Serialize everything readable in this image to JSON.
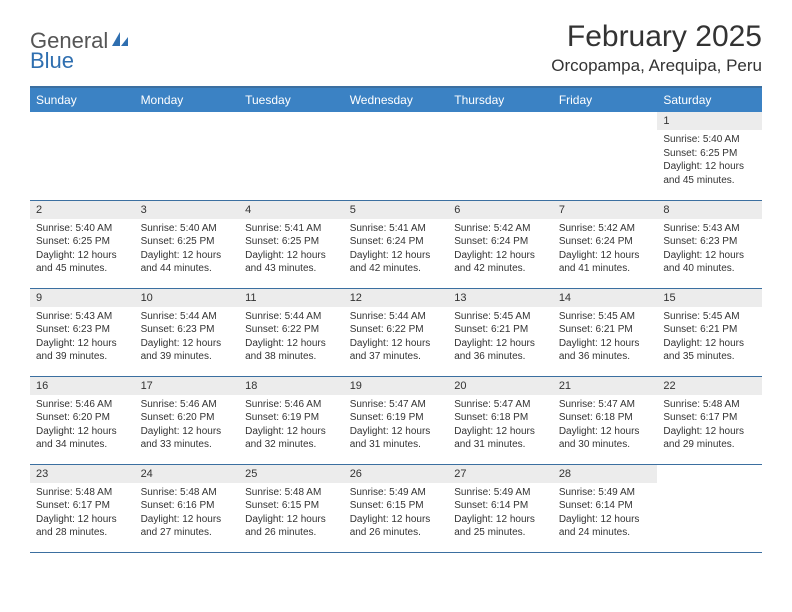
{
  "logo": {
    "text1": "General",
    "text2": "Blue",
    "color_gray": "#555555",
    "color_blue": "#2f6fb0"
  },
  "title": "February 2025",
  "location": "Orcopampa, Arequipa, Peru",
  "header_bg": "#3b82c4",
  "header_border": "#3b6fa0",
  "daynum_bg": "#ececec",
  "text_color": "#333333",
  "days_of_week": [
    "Sunday",
    "Monday",
    "Tuesday",
    "Wednesday",
    "Thursday",
    "Friday",
    "Saturday"
  ],
  "weeks": [
    [
      {
        "n": "",
        "sr": "",
        "ss": "",
        "dl": ""
      },
      {
        "n": "",
        "sr": "",
        "ss": "",
        "dl": ""
      },
      {
        "n": "",
        "sr": "",
        "ss": "",
        "dl": ""
      },
      {
        "n": "",
        "sr": "",
        "ss": "",
        "dl": ""
      },
      {
        "n": "",
        "sr": "",
        "ss": "",
        "dl": ""
      },
      {
        "n": "",
        "sr": "",
        "ss": "",
        "dl": ""
      },
      {
        "n": "1",
        "sr": "Sunrise: 5:40 AM",
        "ss": "Sunset: 6:25 PM",
        "dl": "Daylight: 12 hours and 45 minutes."
      }
    ],
    [
      {
        "n": "2",
        "sr": "Sunrise: 5:40 AM",
        "ss": "Sunset: 6:25 PM",
        "dl": "Daylight: 12 hours and 45 minutes."
      },
      {
        "n": "3",
        "sr": "Sunrise: 5:40 AM",
        "ss": "Sunset: 6:25 PM",
        "dl": "Daylight: 12 hours and 44 minutes."
      },
      {
        "n": "4",
        "sr": "Sunrise: 5:41 AM",
        "ss": "Sunset: 6:25 PM",
        "dl": "Daylight: 12 hours and 43 minutes."
      },
      {
        "n": "5",
        "sr": "Sunrise: 5:41 AM",
        "ss": "Sunset: 6:24 PM",
        "dl": "Daylight: 12 hours and 42 minutes."
      },
      {
        "n": "6",
        "sr": "Sunrise: 5:42 AM",
        "ss": "Sunset: 6:24 PM",
        "dl": "Daylight: 12 hours and 42 minutes."
      },
      {
        "n": "7",
        "sr": "Sunrise: 5:42 AM",
        "ss": "Sunset: 6:24 PM",
        "dl": "Daylight: 12 hours and 41 minutes."
      },
      {
        "n": "8",
        "sr": "Sunrise: 5:43 AM",
        "ss": "Sunset: 6:23 PM",
        "dl": "Daylight: 12 hours and 40 minutes."
      }
    ],
    [
      {
        "n": "9",
        "sr": "Sunrise: 5:43 AM",
        "ss": "Sunset: 6:23 PM",
        "dl": "Daylight: 12 hours and 39 minutes."
      },
      {
        "n": "10",
        "sr": "Sunrise: 5:44 AM",
        "ss": "Sunset: 6:23 PM",
        "dl": "Daylight: 12 hours and 39 minutes."
      },
      {
        "n": "11",
        "sr": "Sunrise: 5:44 AM",
        "ss": "Sunset: 6:22 PM",
        "dl": "Daylight: 12 hours and 38 minutes."
      },
      {
        "n": "12",
        "sr": "Sunrise: 5:44 AM",
        "ss": "Sunset: 6:22 PM",
        "dl": "Daylight: 12 hours and 37 minutes."
      },
      {
        "n": "13",
        "sr": "Sunrise: 5:45 AM",
        "ss": "Sunset: 6:21 PM",
        "dl": "Daylight: 12 hours and 36 minutes."
      },
      {
        "n": "14",
        "sr": "Sunrise: 5:45 AM",
        "ss": "Sunset: 6:21 PM",
        "dl": "Daylight: 12 hours and 36 minutes."
      },
      {
        "n": "15",
        "sr": "Sunrise: 5:45 AM",
        "ss": "Sunset: 6:21 PM",
        "dl": "Daylight: 12 hours and 35 minutes."
      }
    ],
    [
      {
        "n": "16",
        "sr": "Sunrise: 5:46 AM",
        "ss": "Sunset: 6:20 PM",
        "dl": "Daylight: 12 hours and 34 minutes."
      },
      {
        "n": "17",
        "sr": "Sunrise: 5:46 AM",
        "ss": "Sunset: 6:20 PM",
        "dl": "Daylight: 12 hours and 33 minutes."
      },
      {
        "n": "18",
        "sr": "Sunrise: 5:46 AM",
        "ss": "Sunset: 6:19 PM",
        "dl": "Daylight: 12 hours and 32 minutes."
      },
      {
        "n": "19",
        "sr": "Sunrise: 5:47 AM",
        "ss": "Sunset: 6:19 PM",
        "dl": "Daylight: 12 hours and 31 minutes."
      },
      {
        "n": "20",
        "sr": "Sunrise: 5:47 AM",
        "ss": "Sunset: 6:18 PM",
        "dl": "Daylight: 12 hours and 31 minutes."
      },
      {
        "n": "21",
        "sr": "Sunrise: 5:47 AM",
        "ss": "Sunset: 6:18 PM",
        "dl": "Daylight: 12 hours and 30 minutes."
      },
      {
        "n": "22",
        "sr": "Sunrise: 5:48 AM",
        "ss": "Sunset: 6:17 PM",
        "dl": "Daylight: 12 hours and 29 minutes."
      }
    ],
    [
      {
        "n": "23",
        "sr": "Sunrise: 5:48 AM",
        "ss": "Sunset: 6:17 PM",
        "dl": "Daylight: 12 hours and 28 minutes."
      },
      {
        "n": "24",
        "sr": "Sunrise: 5:48 AM",
        "ss": "Sunset: 6:16 PM",
        "dl": "Daylight: 12 hours and 27 minutes."
      },
      {
        "n": "25",
        "sr": "Sunrise: 5:48 AM",
        "ss": "Sunset: 6:15 PM",
        "dl": "Daylight: 12 hours and 26 minutes."
      },
      {
        "n": "26",
        "sr": "Sunrise: 5:49 AM",
        "ss": "Sunset: 6:15 PM",
        "dl": "Daylight: 12 hours and 26 minutes."
      },
      {
        "n": "27",
        "sr": "Sunrise: 5:49 AM",
        "ss": "Sunset: 6:14 PM",
        "dl": "Daylight: 12 hours and 25 minutes."
      },
      {
        "n": "28",
        "sr": "Sunrise: 5:49 AM",
        "ss": "Sunset: 6:14 PM",
        "dl": "Daylight: 12 hours and 24 minutes."
      },
      {
        "n": "",
        "sr": "",
        "ss": "",
        "dl": ""
      }
    ]
  ]
}
